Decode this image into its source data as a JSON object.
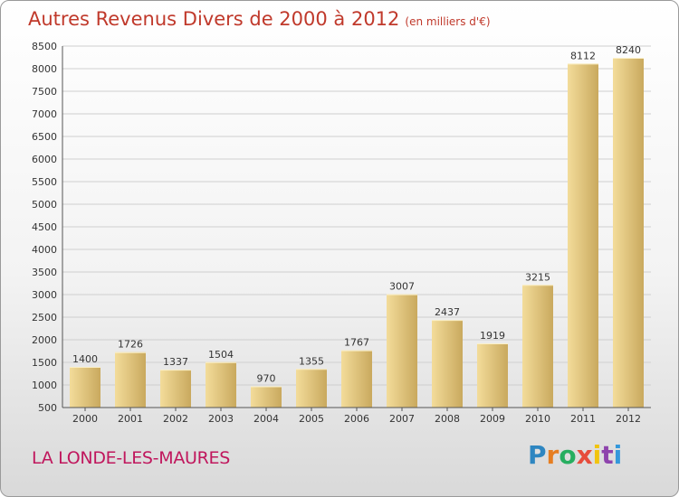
{
  "title": "Autres Revenus Divers de 2000 à 2012",
  "title_unit": "(en milliers d'€)",
  "location": "LA LONDE-LES-MAURES",
  "logo": {
    "letters": [
      "P",
      "r",
      "o",
      "x",
      "i",
      "t",
      "i"
    ],
    "colors": [
      "#2e86c1",
      "#e67e22",
      "#27ae60",
      "#e74c3c",
      "#f1c40f",
      "#8e44ad",
      "#3498db"
    ]
  },
  "colors": {
    "bar_light": "#f3dc9a",
    "bar_dark": "#c9a95e",
    "grid": "#cfcfcf",
    "axis": "#555555",
    "title": "#c0392b",
    "location": "#c0175d"
  },
  "chart_data": {
    "type": "bar",
    "categories": [
      "2000",
      "2001",
      "2002",
      "2003",
      "2004",
      "2005",
      "2006",
      "2007",
      "2008",
      "2009",
      "2010",
      "2011",
      "2012"
    ],
    "values": [
      1400,
      1726,
      1337,
      1504,
      970,
      1355,
      1767,
      3007,
      2437,
      1919,
      3215,
      8112,
      8240
    ],
    "ylim": [
      500,
      8500
    ],
    "yticks": [
      500,
      1000,
      1500,
      2000,
      2500,
      3000,
      3500,
      4000,
      4500,
      5000,
      5500,
      6000,
      6500,
      7000,
      7500,
      8000,
      8500
    ],
    "grid": true,
    "data_labels": true
  }
}
